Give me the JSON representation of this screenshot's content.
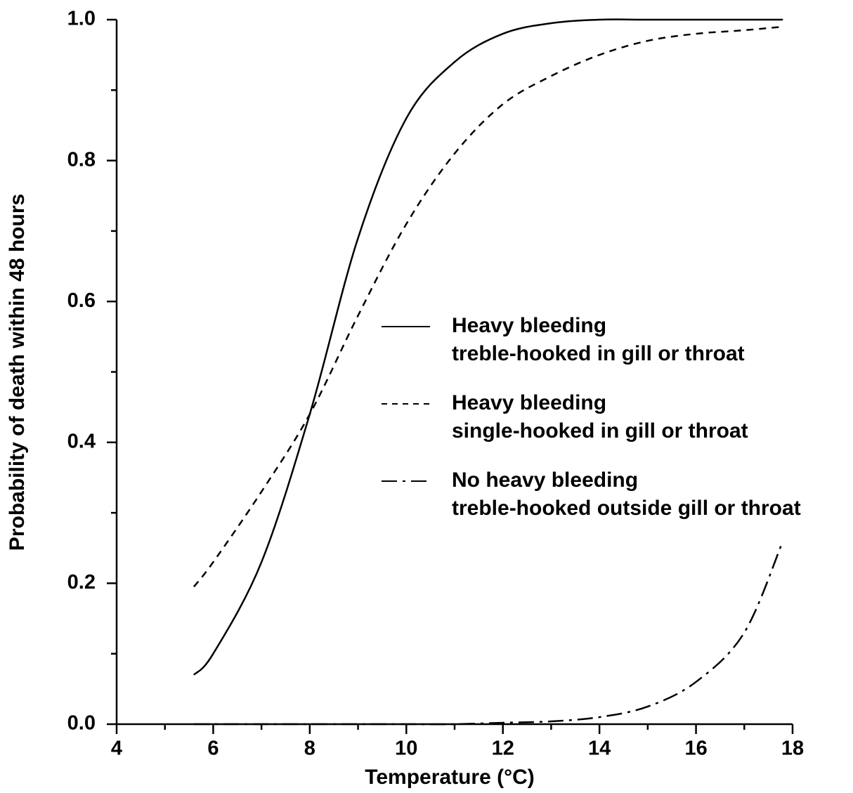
{
  "chart_data": {
    "type": "line",
    "xlabel": "Temperature (°C)",
    "ylabel": "Probability of death within 48 hours",
    "x": [
      5.6,
      6,
      7,
      8,
      9,
      10,
      11,
      12,
      13,
      14,
      15,
      16,
      17,
      17.8
    ],
    "series": [
      {
        "name": [
          "Heavy bleeding",
          "treble-hooked in gill or throat"
        ],
        "color": "#000000",
        "dash": "solid",
        "values": [
          0.07,
          0.1,
          0.23,
          0.44,
          0.69,
          0.86,
          0.94,
          0.98,
          0.995,
          1.0,
          1.0,
          1.0,
          1.0,
          1.0
        ]
      },
      {
        "name": [
          "Heavy bleeding",
          "single-hooked in gill or throat"
        ],
        "color": "#000000",
        "dash": "dashed",
        "values": [
          0.195,
          0.23,
          0.33,
          0.44,
          0.58,
          0.71,
          0.81,
          0.88,
          0.92,
          0.95,
          0.97,
          0.98,
          0.985,
          0.99
        ]
      },
      {
        "name": [
          "No heavy bleeding",
          "treble-hooked outside gill or throat"
        ],
        "color": "#000000",
        "dash": "dashdot",
        "values": [
          0,
          0,
          0,
          0,
          0,
          0,
          0,
          0.002,
          0.004,
          0.01,
          0.025,
          0.06,
          0.13,
          0.26
        ]
      }
    ],
    "xlim": [
      4,
      18
    ],
    "ylim": [
      0,
      1
    ],
    "xticks": [
      4,
      6,
      8,
      10,
      12,
      14,
      16,
      18
    ],
    "xminorticks": [
      5,
      7,
      9,
      11,
      13,
      15,
      17
    ],
    "yticks": [
      {
        "value": 0,
        "label": "0.0"
      },
      0.2,
      0.4,
      0.6,
      0.8,
      {
        "value": 1,
        "label": "1.0"
      }
    ],
    "yminorticks": [
      0.1,
      0.3,
      0.5,
      0.7,
      0.9
    ],
    "legend": "right"
  }
}
